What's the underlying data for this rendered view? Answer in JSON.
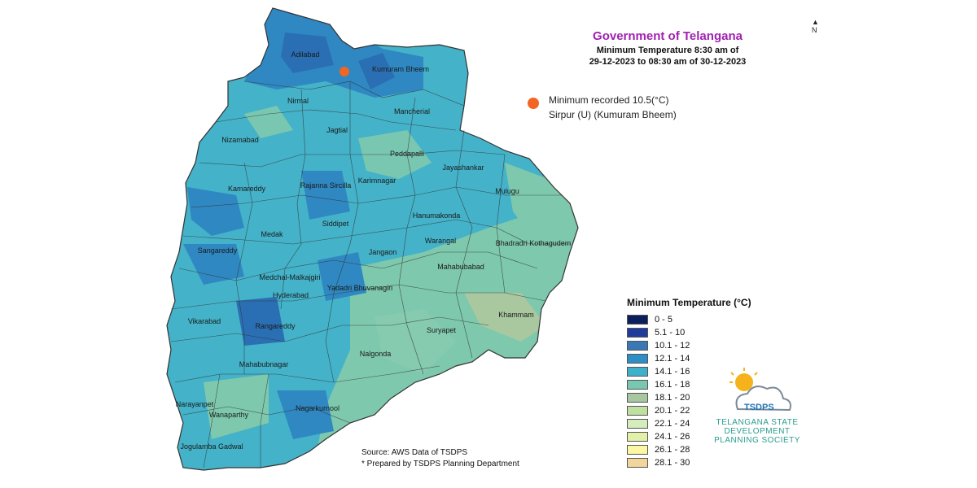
{
  "header": {
    "title": "Government of Telangana",
    "subtitle_line1": "Minimum Temperature 8:30 am of",
    "subtitle_line2": "29-12-2023  to 08:30 am of 30-12-2023"
  },
  "record": {
    "line1": "Minimum recorded 10.5(°C)",
    "line2": "Sirpur (U) (Kumuram Bheem)",
    "marker_color": "#f26522"
  },
  "districts": [
    "Adilabad",
    "Kumuram Bheem",
    "Nirmal",
    "Mancherial",
    "Jagtial",
    "Nizamabad",
    "Peddapalli",
    "Jayashankar",
    "Kamareddy",
    "Rajanna Sircilla",
    "Karimnagar",
    "Mulugu",
    "Hanumakonda",
    "Siddipet",
    "Medak",
    "Warangal",
    "Bhadradri Kothagudem",
    "Sangareddy",
    "Jangaon",
    "Mahabubabad",
    "Medchal-Malkajgiri",
    "Hyderabad",
    "Yadadri Bhuvanagiri",
    "Khammam",
    "Vikarabad",
    "Rangareddy",
    "Suryapet",
    "Nalgonda",
    "Mahabubnagar",
    "Narayanpet",
    "Wanaparthy",
    "Nagarkurnool",
    "Jogulamba Gadwal"
  ],
  "legend": {
    "title": "Minimum Temperature (°C)",
    "items": [
      {
        "label": "0 - 5",
        "color": "#0b1f5c"
      },
      {
        "label": "5.1 - 10",
        "color": "#1f3c9c"
      },
      {
        "label": "10.1 - 12",
        "color": "#3a78b5"
      },
      {
        "label": "12.1 - 14",
        "color": "#2e8fc7"
      },
      {
        "label": "14.1 - 16",
        "color": "#3fb0c9"
      },
      {
        "label": "16.1 - 18",
        "color": "#79c7b0"
      },
      {
        "label": "18.1 - 20",
        "color": "#a7c7a0"
      },
      {
        "label": "20.1 - 22",
        "color": "#bfe0a0"
      },
      {
        "label": "22.1 - 24",
        "color": "#d5ecbc"
      },
      {
        "label": "24.1 - 26",
        "color": "#e3f0a8"
      },
      {
        "label": "26.1 - 28",
        "color": "#fbf7a3"
      },
      {
        "label": "28.1 - 30",
        "color": "#f2d59a"
      }
    ]
  },
  "logo": {
    "acronym": "TSDPS",
    "name_line1": "TELANGANA STATE",
    "name_line2": "DEVELOPMENT",
    "name_line3": "PLANNING SOCIETY"
  },
  "footer": {
    "source": "Source: AWS Data of TSDPS",
    "prepared": "* Prepared by TSDPS Planning Department"
  },
  "north_label": "N"
}
